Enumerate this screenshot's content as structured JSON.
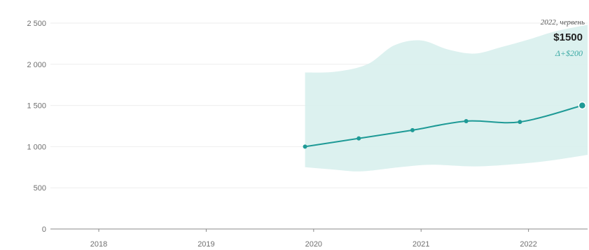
{
  "chart_data": {
    "type": "line",
    "title": "",
    "xlabel": "",
    "ylabel": "",
    "ylim": [
      0,
      2500
    ],
    "xlim": [
      2017.55,
      2022.55
    ],
    "grid": true,
    "y_ticks": [
      {
        "value": 0,
        "label": "0"
      },
      {
        "value": 500,
        "label": "500"
      },
      {
        "value": 1000,
        "label": "1 000"
      },
      {
        "value": 1500,
        "label": "1 500"
      },
      {
        "value": 2000,
        "label": "2 000"
      },
      {
        "value": 2500,
        "label": "2 500"
      }
    ],
    "x_ticks": [
      {
        "value": 2018,
        "label": "2018"
      },
      {
        "value": 2019,
        "label": "2019"
      },
      {
        "value": 2020,
        "label": "2020"
      },
      {
        "value": 2021,
        "label": "2021"
      },
      {
        "value": 2022,
        "label": "2022"
      }
    ],
    "series": [
      {
        "points": [
          {
            "x": 2019.92,
            "y": 1000
          },
          {
            "x": 2020.42,
            "y": 1100
          },
          {
            "x": 2020.92,
            "y": 1200
          },
          {
            "x": 2021.42,
            "y": 1310
          },
          {
            "x": 2021.92,
            "y": 1300
          },
          {
            "x": 2022.5,
            "y": 1500
          }
        ]
      }
    ],
    "band": {
      "upper": [
        {
          "x": 2019.92,
          "y": 1900
        },
        {
          "x": 2020.2,
          "y": 1910
        },
        {
          "x": 2020.5,
          "y": 2000
        },
        {
          "x": 2020.75,
          "y": 2230
        },
        {
          "x": 2021.0,
          "y": 2290
        },
        {
          "x": 2021.25,
          "y": 2180
        },
        {
          "x": 2021.5,
          "y": 2130
        },
        {
          "x": 2021.75,
          "y": 2210
        },
        {
          "x": 2022.0,
          "y": 2300
        },
        {
          "x": 2022.25,
          "y": 2400
        },
        {
          "x": 2022.55,
          "y": 2480
        }
      ],
      "lower": [
        {
          "x": 2019.92,
          "y": 750
        },
        {
          "x": 2020.2,
          "y": 720
        },
        {
          "x": 2020.45,
          "y": 700
        },
        {
          "x": 2020.8,
          "y": 750
        },
        {
          "x": 2021.1,
          "y": 780
        },
        {
          "x": 2021.5,
          "y": 760
        },
        {
          "x": 2021.9,
          "y": 790
        },
        {
          "x": 2022.2,
          "y": 830
        },
        {
          "x": 2022.55,
          "y": 900
        }
      ]
    },
    "annotation": {
      "date": "2022, червень",
      "value": "$1500",
      "delta": "Δ+$200"
    },
    "colors": {
      "line": "#1e9a96",
      "band": "#d8efed",
      "delta": "#3aa9a4"
    }
  }
}
